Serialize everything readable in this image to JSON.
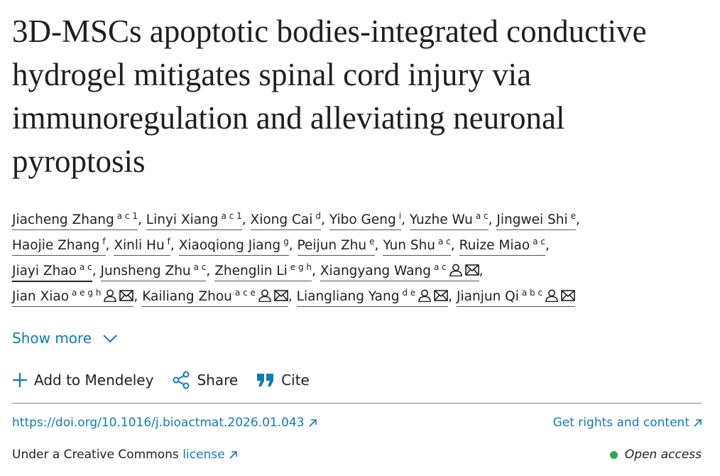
{
  "title": "3D-MSCs apoptotic bodies-integrated conductive hydrogel mitigates spinal cord injury via immunoregulation and alleviating neuronal pyroptosis",
  "author_separator": ",",
  "authors": [
    {
      "name": "Jiacheng Zhang",
      "affiliations": "a c 1",
      "corresponding": false
    },
    {
      "name": "Linyi Xiang",
      "affiliations": "a c 1",
      "corresponding": false
    },
    {
      "name": "Xiong Cai",
      "affiliations": "d",
      "corresponding": false
    },
    {
      "name": "Yibo Geng",
      "affiliations": "i",
      "corresponding": false
    },
    {
      "name": "Yuzhe Wu",
      "affiliations": "a c",
      "corresponding": false
    },
    {
      "name": "Jingwei Shi",
      "affiliations": "e",
      "corresponding": false
    },
    {
      "name": "Haojie Zhang",
      "affiliations": "f",
      "corresponding": false
    },
    {
      "name": "Xinli Hu",
      "affiliations": "f",
      "corresponding": false
    },
    {
      "name": "Xiaoqiong Jiang",
      "affiliations": "g",
      "corresponding": false
    },
    {
      "name": "Peijun Zhu",
      "affiliations": "e",
      "corresponding": false
    },
    {
      "name": "Yun Shu",
      "affiliations": "a c",
      "corresponding": false
    },
    {
      "name": "Ruize Miao",
      "affiliations": "a c",
      "corresponding": false
    },
    {
      "name": "Jiayi Zhao",
      "affiliations": "a c",
      "corresponding": false
    },
    {
      "name": "Junsheng Zhu",
      "affiliations": "a c",
      "corresponding": false
    },
    {
      "name": "Zhenglin Li",
      "affiliations": "e g h",
      "corresponding": false
    },
    {
      "name": "Xiangyang Wang",
      "affiliations": "a c",
      "corresponding": true
    },
    {
      "name": "Jian Xiao",
      "affiliations": "a e g h",
      "corresponding": true
    },
    {
      "name": "Kailiang Zhou",
      "affiliations": "a c e",
      "corresponding": true
    },
    {
      "name": "Liangliang Yang",
      "affiliations": "d e",
      "corresponding": true
    },
    {
      "name": "Jianjun Qi",
      "affiliations": "a b c",
      "corresponding": true
    }
  ],
  "show_more": "Show more",
  "actions": {
    "mendeley": "Add to Mendeley",
    "share": "Share",
    "cite": "Cite"
  },
  "doi": "https://doi.org/10.1016/j.bioactmat.2026.01.043",
  "rights": "Get rights and content",
  "license": {
    "prefix": "Under a Creative Commons",
    "link": "license"
  },
  "access": "Open access"
}
